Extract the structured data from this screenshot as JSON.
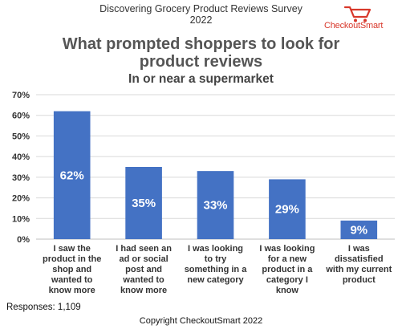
{
  "header": {
    "survey_line1": "Discovering Grocery Product Reviews Survey",
    "survey_line2": "2022",
    "brand": "CheckoutSmart",
    "logo_icon": "shopping-cart-icon",
    "brand_color": "#d8382b"
  },
  "footer": {
    "responses": "Responses: 1,109",
    "copyright": "Copyright CheckoutSmart 2022"
  },
  "chart_data": {
    "type": "bar",
    "title_lines": [
      "What prompted shoppers to look for",
      "product reviews"
    ],
    "subtitle": "In or near a supermarket",
    "categories": [
      [
        "I saw the",
        "product in the",
        "shop and",
        "wanted to",
        "know more"
      ],
      [
        "I had seen an",
        "ad or social",
        "post and",
        "wanted to",
        "know more"
      ],
      [
        "I was looking",
        "to try",
        "something in a",
        "new category"
      ],
      [
        "I was looking",
        "for a new",
        "product in a",
        "category I",
        "know"
      ],
      [
        "I was",
        "dissatisfied",
        "with my current",
        "product"
      ]
    ],
    "values": [
      62,
      35,
      33,
      29,
      9
    ],
    "data_labels": [
      "62%",
      "35%",
      "33%",
      "29%",
      "9%"
    ],
    "ylim": [
      0,
      70
    ],
    "yticks": [
      0,
      10,
      20,
      30,
      40,
      50,
      60,
      70
    ],
    "ytick_labels": [
      "0%",
      "10%",
      "20%",
      "30%",
      "40%",
      "50%",
      "60%",
      "70%"
    ],
    "grid": true,
    "legend": "none",
    "bar_color": "#4472c4",
    "xlabel": "",
    "ylabel": ""
  }
}
